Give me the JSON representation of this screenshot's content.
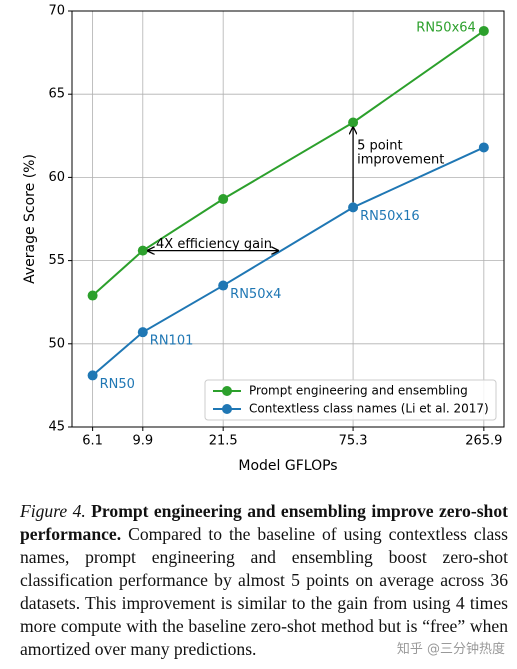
{
  "chart_data": {
    "type": "line",
    "xlabel": "Model GFLOPs",
    "ylabel": "Average Score (%)",
    "x": [
      6.1,
      9.9,
      21.5,
      75.3,
      265.9
    ],
    "xscale": "log",
    "xlim": [
      5.0,
      323
    ],
    "xticks": [
      6.1,
      9.9,
      21.5,
      75.3,
      265.9
    ],
    "ylim": [
      45,
      70
    ],
    "yticks": [
      45,
      50,
      55,
      60,
      65,
      70
    ],
    "grid": true,
    "legend": "lower right",
    "series": [
      {
        "name": "Prompt engineering and ensembling",
        "color": "#2ca02c",
        "values": [
          52.9,
          55.6,
          58.7,
          63.3,
          68.8
        ]
      },
      {
        "name": "Contextless class names (Li et al. 2017)",
        "color": "#1f77b4",
        "values": [
          48.1,
          50.7,
          53.5,
          58.2,
          61.8
        ]
      }
    ],
    "point_labels": [
      "RN50",
      "RN101",
      "RN50x4",
      "RN50x16",
      "RN50x64"
    ],
    "annotations": [
      {
        "text": [
          "4X efficiency gain"
        ]
      },
      {
        "text": [
          "5 point",
          "improvement"
        ]
      }
    ]
  },
  "caption": {
    "label": "Figure 4.",
    "title": "Prompt engineering and ensembling improve zero-shot performance.",
    "text": "Compared to the baseline of using contextless class names, prompt engineering and ensembling boost zero-shot classification performance by almost 5 points on average across 36 datasets. This improvement is similar to the gain from using 4 times more compute with the baseline zero-shot method but is “free” when amortized over many predictions."
  },
  "watermark": "知乎 @三分钟热度"
}
